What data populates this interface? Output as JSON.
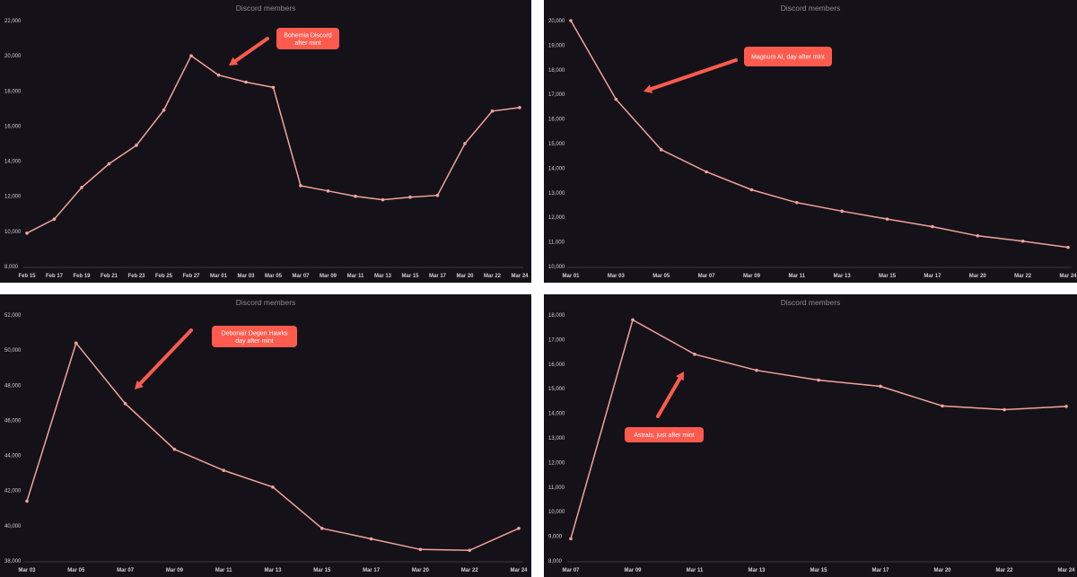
{
  "colors": {
    "background": "#141218",
    "line": "#f4a29a",
    "callout": "#ff5a4e",
    "title": "#8c8a92",
    "tick": "#cfcfd4"
  },
  "chart_data": [
    {
      "type": "line",
      "title": "Discord members",
      "categories": [
        "Feb 15",
        "Feb 17",
        "Feb 19",
        "Feb 21",
        "Feb 23",
        "Feb 25",
        "Feb 27",
        "Mar 01",
        "Mar 03",
        "Mar 05",
        "Mar 07",
        "Mar 09",
        "Mar 11",
        "Mar 13",
        "Mar 15",
        "Mar 17",
        "Mar 20",
        "Mar 22",
        "Mar 24"
      ],
      "values": [
        9900,
        10700,
        12500,
        13850,
        14900,
        16900,
        20000,
        18900,
        18500,
        18200,
        12600,
        12300,
        12000,
        11800,
        11950,
        12050,
        15000,
        16850,
        17050
      ],
      "yticks": [
        8000,
        10000,
        12000,
        14000,
        16000,
        18000,
        20000,
        22000
      ],
      "ytick_labels": [
        "8,000",
        "10,000",
        "12,000",
        "14,000",
        "16,000",
        "18,000",
        "20,000",
        "22,000"
      ],
      "ylim": [
        8000,
        22000
      ],
      "annotation": {
        "lines": [
          "Bohemia Discord",
          "after mint"
        ],
        "target_index": 7
      }
    },
    {
      "type": "line",
      "title": "Discord members",
      "categories": [
        "Mar 01",
        "Mar 03",
        "Mar 05",
        "Mar 07",
        "Mar 09",
        "Mar 11",
        "Mar 13",
        "Mar 15",
        "Mar 17",
        "Mar 20",
        "Mar 22",
        "Mar 24"
      ],
      "values": [
        20000,
        16800,
        14750,
        13850,
        13120,
        12600,
        12250,
        11930,
        11620,
        11250,
        11030,
        10780
      ],
      "yticks": [
        10000,
        11000,
        12000,
        13000,
        14000,
        15000,
        16000,
        17000,
        18000,
        19000,
        20000
      ],
      "ytick_labels": [
        "10,000",
        "11,000",
        "12,000",
        "13,000",
        "14,000",
        "15,000",
        "16,000",
        "17,000",
        "18,000",
        "19,000",
        "20,000"
      ],
      "ylim": [
        10000,
        20000
      ],
      "annotation": {
        "lines": [
          "Magnum AI, day after mint"
        ],
        "target_index": 1
      }
    },
    {
      "type": "line",
      "title": "Discord members",
      "categories": [
        "Mar 03",
        "Mar 05",
        "Mar 07",
        "Mar 09",
        "Mar 11",
        "Mar 13",
        "Mar 15",
        "Mar 17",
        "Mar 20",
        "Mar 22",
        "Mar 24"
      ],
      "values": [
        41400,
        50400,
        46950,
        44350,
        43150,
        42200,
        39850,
        39250,
        38650,
        38600,
        39850
      ],
      "yticks": [
        38000,
        40000,
        42000,
        44000,
        46000,
        48000,
        50000,
        52000
      ],
      "ytick_labels": [
        "38,000",
        "40,000",
        "42,000",
        "44,000",
        "46,000",
        "48,000",
        "50,000",
        "52,000"
      ],
      "ylim": [
        38000,
        52000
      ],
      "annotation": {
        "lines": [
          "Debonair Degen Hawks",
          "day after mint"
        ],
        "target_index": 2
      }
    },
    {
      "type": "line",
      "title": "Discord members",
      "categories": [
        "Mar 07",
        "Mar 09",
        "Mar 11",
        "Mar 13",
        "Mar 15",
        "Mar 17",
        "Mar 20",
        "Mar 22",
        "Mar 24"
      ],
      "values": [
        8900,
        17800,
        16400,
        15750,
        15350,
        15100,
        14300,
        14150,
        14280
      ],
      "yticks": [
        8000,
        9000,
        10000,
        11000,
        12000,
        13000,
        14000,
        15000,
        16000,
        17000,
        18000
      ],
      "ytick_labels": [
        "8,000",
        "9,000",
        "10,000",
        "11,000",
        "12,000",
        "13,000",
        "14,000",
        "15,000",
        "16,000",
        "17,000",
        "18,000"
      ],
      "ylim": [
        8000,
        18000
      ],
      "annotation": {
        "lines": [
          "Astrals, just after mint"
        ],
        "target_index": 2
      }
    }
  ]
}
